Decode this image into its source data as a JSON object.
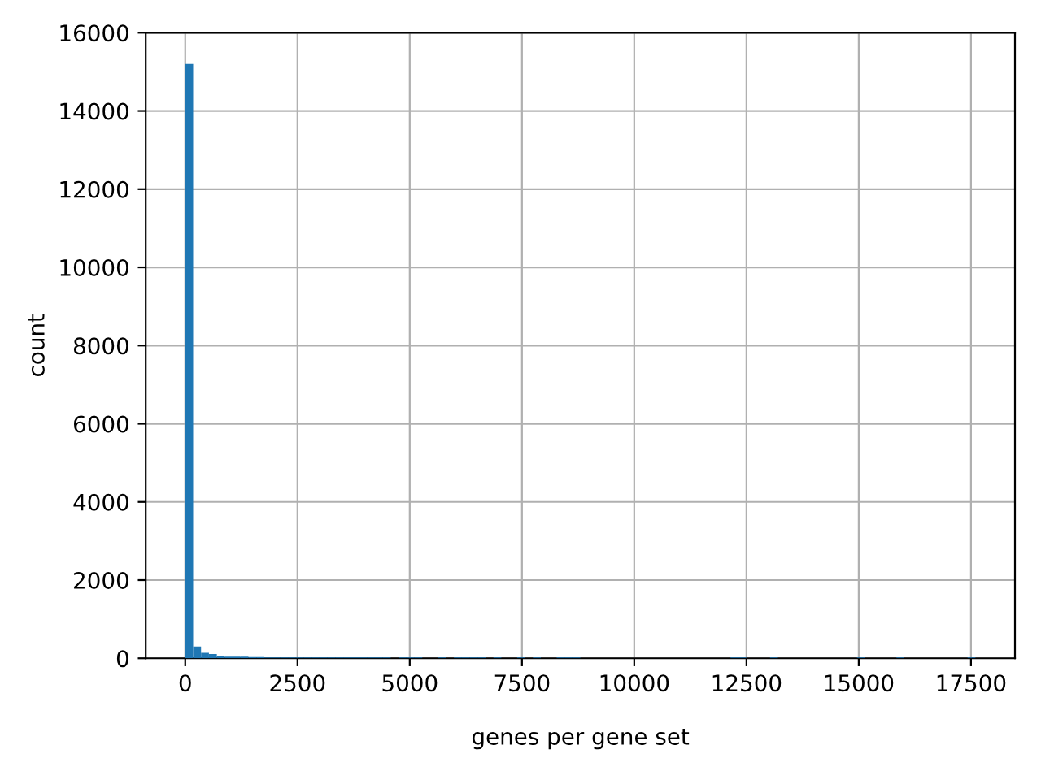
{
  "chart_data": {
    "type": "histogram",
    "xlabel": "genes per gene set",
    "ylabel": "count",
    "bins": [
      0,
      176,
      352,
      528,
      704,
      880,
      1056,
      1232,
      1408,
      1584,
      1760,
      1936,
      2112,
      2288,
      2464,
      2640,
      2816,
      2992,
      3168,
      3344,
      3520,
      3696,
      3872,
      4048,
      4224,
      4400,
      4576,
      4752,
      4928,
      5104,
      5280,
      5456,
      5632,
      5808,
      5984,
      6160,
      6336,
      6512,
      6688,
      6864,
      7040,
      7216,
      7392,
      7568,
      7744,
      7920,
      8096,
      8272,
      8448,
      8624,
      8800,
      8976,
      9152,
      9328,
      9504,
      9680,
      9856,
      10032,
      10208,
      10384,
      10560,
      10736,
      10912,
      11088,
      11264,
      11440,
      11616,
      11792,
      11968,
      12144,
      12320,
      12496,
      12672,
      12848,
      13024,
      13200,
      13376,
      13552,
      13728,
      13904,
      14080,
      14256,
      14432,
      14608,
      14784,
      14960,
      15136,
      15312,
      15488,
      15664,
      15840,
      16016,
      16192,
      16368,
      16544,
      16720,
      16896,
      17072,
      17248,
      17424,
      17600
    ],
    "values": [
      15200,
      300,
      140,
      110,
      60,
      40,
      40,
      40,
      30,
      30,
      20,
      20,
      20,
      20,
      20,
      20,
      20,
      20,
      20,
      20,
      20,
      20,
      20,
      20,
      20,
      20,
      0,
      20,
      20,
      20,
      0,
      0,
      20,
      0,
      20,
      20,
      20,
      20,
      0,
      20,
      0,
      0,
      20,
      0,
      20,
      0,
      0,
      20,
      20,
      20,
      0,
      0,
      0,
      0,
      0,
      0,
      0,
      0,
      0,
      0,
      0,
      0,
      0,
      0,
      0,
      0,
      0,
      0,
      0,
      20,
      20,
      0,
      0,
      0,
      20,
      0,
      0,
      0,
      0,
      0,
      0,
      0,
      0,
      0,
      0,
      20,
      0,
      0,
      0,
      0,
      20,
      0,
      0,
      0,
      0,
      0,
      0,
      0,
      0,
      20
    ],
    "color": "#1f77b4",
    "xlim": [
      -880,
      18480
    ],
    "xticks": [
      0,
      2500,
      5000,
      7500,
      10000,
      12500,
      15000,
      17500
    ],
    "ylim": [
      0,
      16000
    ],
    "yticks": [
      0,
      2000,
      4000,
      6000,
      8000,
      10000,
      12000,
      14000,
      16000
    ],
    "grid": true
  }
}
